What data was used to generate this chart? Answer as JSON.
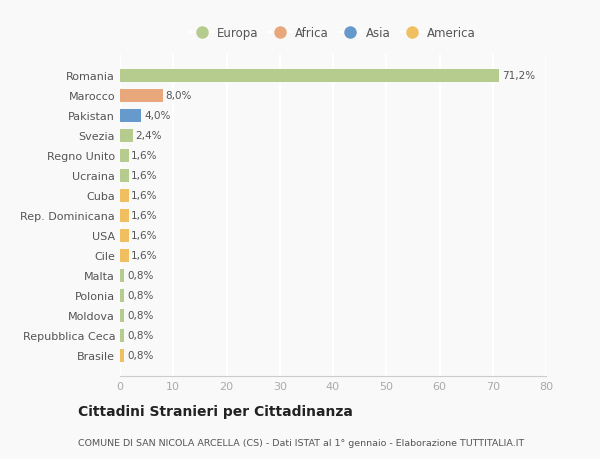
{
  "countries": [
    "Romania",
    "Marocco",
    "Pakistan",
    "Svezia",
    "Regno Unito",
    "Ucraina",
    "Cuba",
    "Rep. Dominicana",
    "USA",
    "Cile",
    "Malta",
    "Polonia",
    "Moldova",
    "Repubblica Ceca",
    "Brasile"
  ],
  "values": [
    71.2,
    8.0,
    4.0,
    2.4,
    1.6,
    1.6,
    1.6,
    1.6,
    1.6,
    1.6,
    0.8,
    0.8,
    0.8,
    0.8,
    0.8
  ],
  "labels": [
    "71,2%",
    "8,0%",
    "4,0%",
    "2,4%",
    "1,6%",
    "1,6%",
    "1,6%",
    "1,6%",
    "1,6%",
    "1,6%",
    "0,8%",
    "0,8%",
    "0,8%",
    "0,8%",
    "0,8%"
  ],
  "continents": [
    "Europa",
    "Africa",
    "Asia",
    "Europa",
    "Europa",
    "Europa",
    "America",
    "America",
    "America",
    "America",
    "Europa",
    "Europa",
    "Europa",
    "Europa",
    "America"
  ],
  "continent_colors": {
    "Europa": "#b5cc8e",
    "Africa": "#e8a87c",
    "Asia": "#6699cc",
    "America": "#f0c060"
  },
  "legend_order": [
    "Europa",
    "Africa",
    "Asia",
    "America"
  ],
  "title": "Cittadini Stranieri per Cittadinanza",
  "subtitle": "COMUNE DI SAN NICOLA ARCELLA (CS) - Dati ISTAT al 1° gennaio - Elaborazione TUTTITALIA.IT",
  "xlim": [
    0,
    80
  ],
  "xticks": [
    0,
    10,
    20,
    30,
    40,
    50,
    60,
    70,
    80
  ],
  "background_color": "#f9f9f9",
  "grid_color": "#ffffff",
  "bar_height": 0.65
}
